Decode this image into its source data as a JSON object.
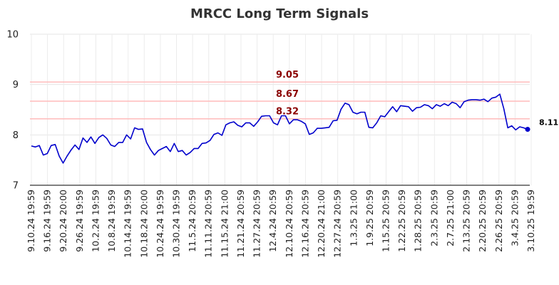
{
  "chart_data": {
    "type": "line",
    "title": "MRCC Long Term Signals",
    "xlabel": "",
    "ylabel": "",
    "ylim": [
      7,
      10
    ],
    "yticks": [
      "7",
      "8",
      "9",
      "10"
    ],
    "x_tick_labels": [
      "9.10.24 19:59",
      "9.16.24 19:59",
      "9.20.24 20:00",
      "9.26.24 19:59",
      "10.2.24 19:59",
      "10.8.24 19:59",
      "10.14.24 19:59",
      "10.18.24 20:00",
      "10.24.24 19:59",
      "10.30.24 19:59",
      "11.5.24 20:59",
      "11.11.24 20:59",
      "11.15.24 21:00",
      "11.21.24 20:59",
      "11.27.24 20:59",
      "12.4.24 20:59",
      "12.10.24 20:59",
      "12.16.24 20:59",
      "12.20.24 21:00",
      "12.27.24 20:59",
      "1.3.25 21:00",
      "1.9.25 20:59",
      "1.15.25 20:59",
      "1.22.25 20:59",
      "1.28.25 20:59",
      "2.3.25 20:59",
      "2.7.25 21:00",
      "2.13.25 20:59",
      "2.20.25 20:59",
      "2.26.25 20:59",
      "3.4.25 20:59",
      "3.10.25 19:59"
    ],
    "grid": true,
    "line_color": "#0000cc",
    "signal_line_color": "#ffbbbb",
    "signal_text_color": "#8b0000",
    "signal_lines": [
      {
        "value": 9.05,
        "label": "9.05"
      },
      {
        "value": 8.67,
        "label": "8.67"
      },
      {
        "value": 8.32,
        "label": "8.32"
      }
    ],
    "last_value": {
      "value": 8.11,
      "label": "8.11"
    },
    "series": [
      {
        "values": [
          7.78,
          7.76,
          7.79,
          7.6,
          7.63,
          7.79,
          7.81,
          7.58,
          7.44,
          7.58,
          7.7,
          7.8,
          7.71,
          7.94,
          7.85,
          7.96,
          7.83,
          7.95,
          8.0,
          7.93,
          7.8,
          7.77,
          7.85,
          7.85,
          8.0,
          7.92,
          8.14,
          8.11,
          8.12,
          7.85,
          7.71,
          7.6,
          7.69,
          7.73,
          7.77,
          7.67,
          7.83,
          7.67,
          7.69,
          7.6,
          7.65,
          7.73,
          7.73,
          7.83,
          7.84,
          7.89,
          8.01,
          8.04,
          7.99,
          8.2,
          8.24,
          8.26,
          8.19,
          8.16,
          8.24,
          8.24,
          8.17,
          8.26,
          8.37,
          8.38,
          8.38,
          8.24,
          8.2,
          8.38,
          8.38,
          8.22,
          8.3,
          8.3,
          8.27,
          8.22,
          8.01,
          8.04,
          8.13,
          8.13,
          8.14,
          8.15,
          8.28,
          8.29,
          8.51,
          8.63,
          8.6,
          8.45,
          8.42,
          8.45,
          8.45,
          8.15,
          8.14,
          8.24,
          8.38,
          8.36,
          8.46,
          8.56,
          8.46,
          8.58,
          8.57,
          8.56,
          8.47,
          8.54,
          8.55,
          8.6,
          8.58,
          8.52,
          8.6,
          8.57,
          8.62,
          8.58,
          8.65,
          8.62,
          8.54,
          8.66,
          8.69,
          8.7,
          8.7,
          8.69,
          8.71,
          8.66,
          8.73,
          8.75,
          8.81,
          8.52,
          8.14,
          8.18,
          8.1,
          8.16,
          8.14,
          8.11
        ]
      }
    ]
  }
}
